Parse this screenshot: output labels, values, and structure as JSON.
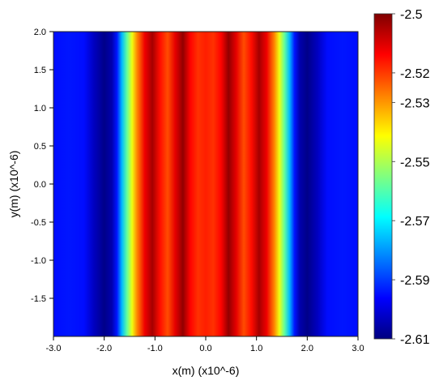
{
  "chart_data": {
    "type": "heatmap",
    "title": "",
    "xlabel": "x(m) (x10^-6)",
    "ylabel": "y(m) (x10^-6)",
    "xlim": [
      -3.0,
      3.0
    ],
    "ylim": [
      -2.0,
      2.0
    ],
    "x_ticks": [
      {
        "value": -3.0,
        "label": "-3.0"
      },
      {
        "value": -2.0,
        "label": "-2.0"
      },
      {
        "value": -1.0,
        "label": "-1.0"
      },
      {
        "value": 0.0,
        "label": "0.0"
      },
      {
        "value": 1.0,
        "label": "1.0"
      },
      {
        "value": 2.0,
        "label": "2.0"
      },
      {
        "value": 3.0,
        "label": "3.0"
      }
    ],
    "y_ticks": [
      {
        "value": 2.0,
        "label": "2.0"
      },
      {
        "value": 1.5,
        "label": "1.5"
      },
      {
        "value": 1.0,
        "label": "1.0"
      },
      {
        "value": 0.5,
        "label": "0.5"
      },
      {
        "value": 0.0,
        "label": "0.0"
      },
      {
        "value": -0.5,
        "label": "-0.5"
      },
      {
        "value": -1.0,
        "label": "-1.0"
      },
      {
        "value": -1.5,
        "label": "-1.5"
      }
    ],
    "colorbar": {
      "colormap": "jet",
      "range": [
        -2.61,
        -2.5
      ],
      "ticks": [
        {
          "value": -2.5,
          "label": "-2.5"
        },
        {
          "value": -2.52,
          "label": "-2.52"
        },
        {
          "value": -2.53,
          "label": "-2.53"
        },
        {
          "value": -2.55,
          "label": "-2.55"
        },
        {
          "value": -2.57,
          "label": "-2.57"
        },
        {
          "value": -2.59,
          "label": "-2.59"
        },
        {
          "value": -2.61,
          "label": "-2.61"
        }
      ]
    },
    "profile_along_x": {
      "x": [
        -3.0,
        -2.7,
        -2.4,
        -2.2,
        -2.0,
        -1.85,
        -1.75,
        -1.65,
        -1.55,
        -1.45,
        -1.35,
        -1.2,
        -1.05,
        -0.9,
        -0.75,
        -0.6,
        -0.45,
        -0.3,
        -0.15,
        0.0,
        0.15,
        0.3,
        0.45,
        0.6,
        0.75,
        0.9,
        1.05,
        1.2,
        1.35,
        1.45,
        1.55,
        1.65,
        1.75,
        1.85,
        2.0,
        2.2,
        2.4,
        2.7,
        3.0
      ],
      "values": [
        -2.595,
        -2.594,
        -2.595,
        -2.603,
        -2.609,
        -2.605,
        -2.594,
        -2.576,
        -2.558,
        -2.543,
        -2.528,
        -2.512,
        -2.504,
        -2.515,
        -2.522,
        -2.511,
        -2.502,
        -2.514,
        -2.519,
        -2.517,
        -2.519,
        -2.514,
        -2.502,
        -2.511,
        -2.522,
        -2.515,
        -2.504,
        -2.512,
        -2.528,
        -2.543,
        -2.558,
        -2.576,
        -2.594,
        -2.605,
        -2.609,
        -2.603,
        -2.595,
        -2.594,
        -2.595
      ]
    },
    "grid": false,
    "legend": "colorbar right"
  }
}
